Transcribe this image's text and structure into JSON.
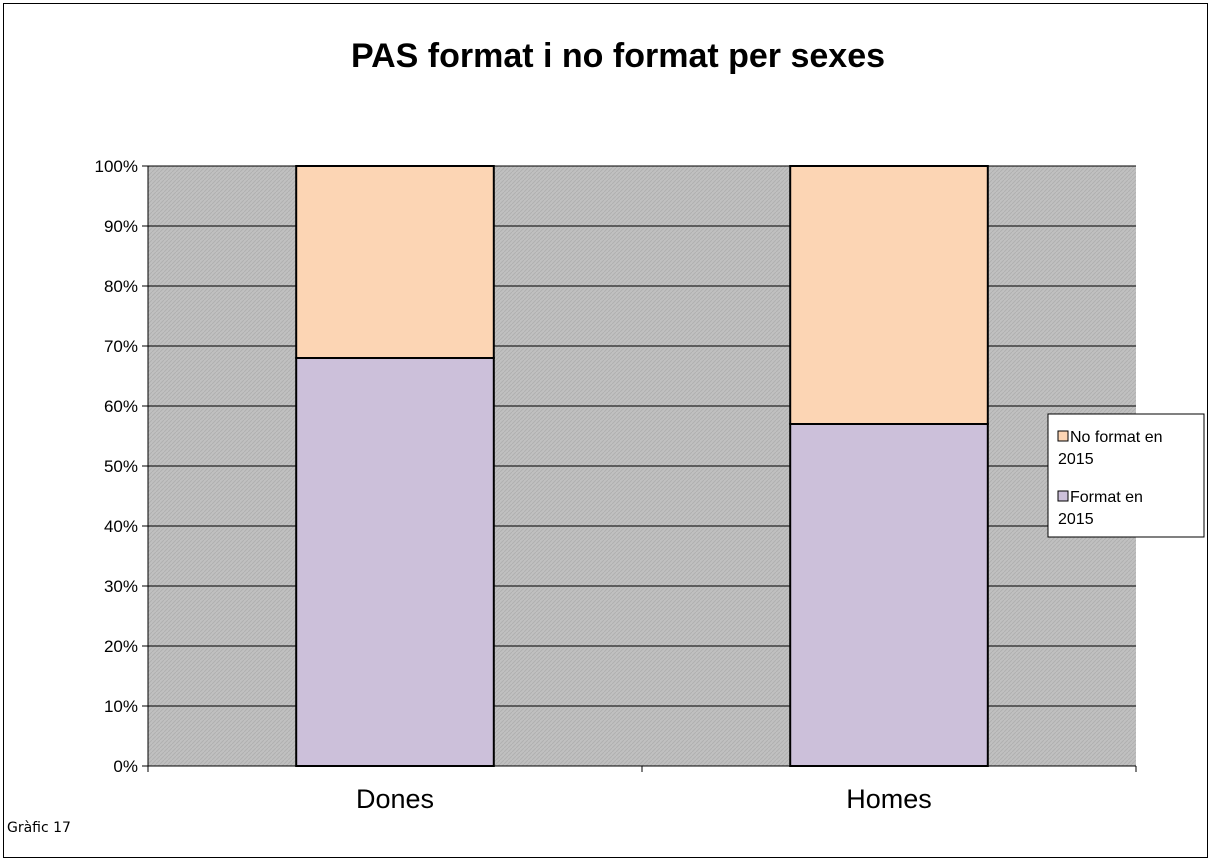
{
  "chart_data": {
    "type": "bar",
    "stacked": true,
    "percent_stacked": true,
    "title": "PAS format i no format per sexes",
    "categories": [
      "Dones",
      "Homes"
    ],
    "series": [
      {
        "name": "Format en 2015",
        "values": [
          68,
          57
        ],
        "color": "#ccc0da"
      },
      {
        "name": "No format en 2015",
        "values": [
          32,
          43
        ],
        "color": "#fcd5b4"
      }
    ],
    "ylim": [
      0,
      100
    ],
    "yticks": [
      "0%",
      "10%",
      "20%",
      "30%",
      "40%",
      "50%",
      "60%",
      "70%",
      "80%",
      "90%",
      "100%"
    ],
    "legend": {
      "position": "right",
      "entries": [
        {
          "line1": "No format en",
          "line2": "2015",
          "color": "#fcd5b4"
        },
        {
          "line1": "Format en",
          "line2": "2015",
          "color": "#ccc0da"
        }
      ]
    },
    "grid": true,
    "plot_background": "#c0c0c0"
  },
  "caption": "Gràfic 17"
}
